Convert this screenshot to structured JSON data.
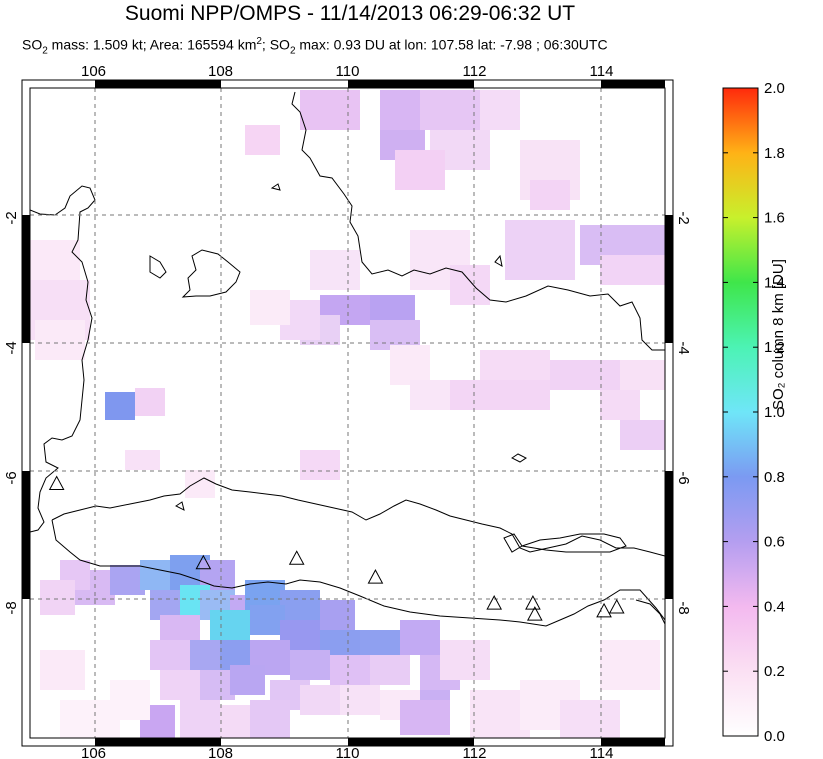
{
  "header": {
    "title": "Suomi NPP/OMPS - 11/14/2013 06:29-06:32 UT",
    "subtitle_so2": "SO",
    "subtitle_rest1": " mass: 1.509 kt; Area: 165594 km",
    "subtitle_rest2": "; SO",
    "subtitle_rest3": " max: 0.93 DU at lon: 107.58 lat: -7.98 ; 06:30UTC",
    "sub2": "2",
    "sup2": "2"
  },
  "map": {
    "lon_range": [
      105,
      115
    ],
    "lat_range": [
      -10,
      0
    ],
    "lon_ticks": [
      "106",
      "108",
      "110",
      "112",
      "114"
    ],
    "lat_ticks": [
      "-2",
      "-4",
      "-6",
      "-8"
    ]
  },
  "colorbar": {
    "label": "SO₂ column 8 km [DU]",
    "ticks": [
      "0.0",
      "0.2",
      "0.4",
      "0.6",
      "0.8",
      "1.0",
      "1.2",
      "1.4",
      "1.6",
      "1.8",
      "2.0"
    ],
    "range": [
      0,
      2
    ]
  },
  "volcano_markers": [
    {
      "lon": 105.42,
      "lat": -6.1
    },
    {
      "lon": 107.73,
      "lat": -7.32
    },
    {
      "lon": 109.2,
      "lat": -7.25
    },
    {
      "lon": 110.44,
      "lat": -7.54
    },
    {
      "lon": 112.31,
      "lat": -7.94
    },
    {
      "lon": 112.92,
      "lat": -7.94
    },
    {
      "lon": 112.95,
      "lat": -8.11
    },
    {
      "lon": 114.04,
      "lat": -8.06
    },
    {
      "lon": 114.24,
      "lat": -8.0
    }
  ]
}
